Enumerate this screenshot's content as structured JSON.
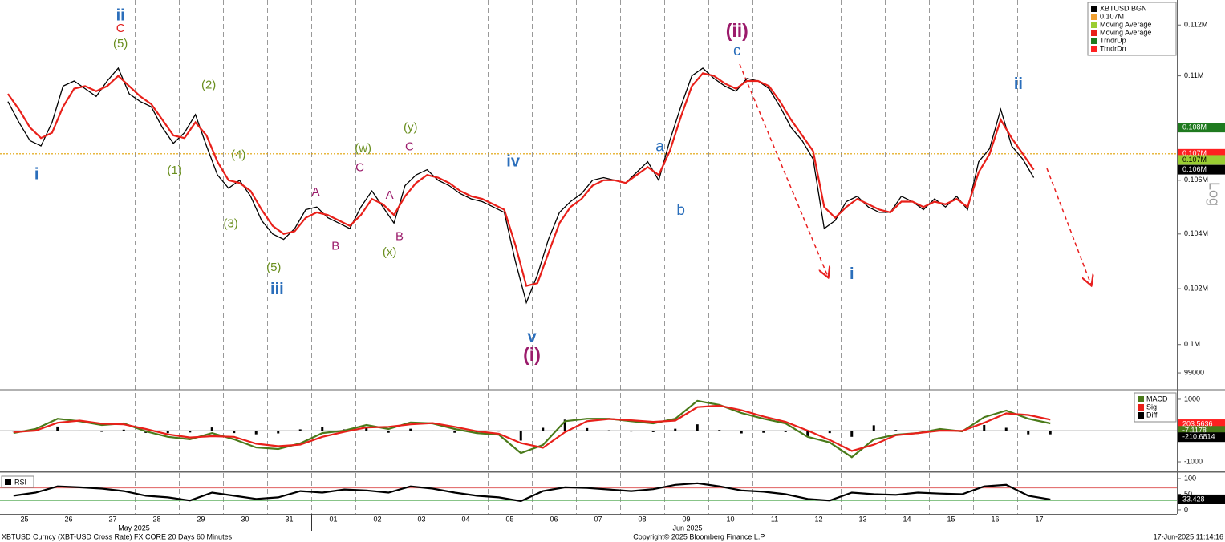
{
  "chart_data": [
    {
      "type": "line",
      "log_scale": true,
      "y_axis_label": "Log",
      "categories": [
        null,
        null,
        "25",
        null,
        null,
        null,
        "26",
        null,
        null,
        null,
        "27",
        null,
        null,
        null,
        "28",
        null,
        null,
        null,
        "29",
        null,
        null,
        null,
        "30",
        null,
        null,
        null,
        "31",
        null,
        null,
        null,
        "01",
        null,
        null,
        null,
        "02",
        null,
        null,
        null,
        "03",
        null,
        null,
        null,
        "04",
        null,
        null,
        null,
        "05",
        null,
        null,
        null,
        "06",
        null,
        null,
        null,
        "07",
        null,
        null,
        null,
        "08",
        null,
        null,
        null,
        "09",
        null,
        null,
        null,
        "10",
        null,
        null,
        null,
        "11",
        null,
        null,
        null,
        "12",
        null,
        null,
        null,
        "13",
        null,
        null,
        null,
        "14",
        null,
        null,
        null,
        "15",
        null,
        null,
        null,
        "16",
        null,
        null,
        null,
        "17",
        null
      ],
      "series": [
        {
          "color": "#000000",
          "values": [
            109000,
            108200,
            107500,
            107300,
            108200,
            109600,
            109800,
            109500,
            109200,
            109800,
            110300,
            109300,
            109000,
            108800,
            108000,
            107400,
            107800,
            108500,
            107300,
            106200,
            105700,
            106000,
            105400,
            104500,
            104000,
            103800,
            104200,
            104900,
            105000,
            104600,
            104400,
            104200,
            105000,
            105600,
            105000,
            104400,
            105800,
            106200,
            106400,
            106000,
            105800,
            105500,
            105300,
            105200,
            105000,
            104800,
            103000,
            101500,
            102500,
            103800,
            104800,
            105200,
            105500,
            106000,
            106100,
            106000,
            105900,
            106300,
            106700,
            106000,
            107500,
            108800,
            110000,
            110300,
            109900,
            109600,
            109400,
            109900,
            109800,
            109500,
            108800,
            108000,
            107500,
            106800,
            104200,
            104500,
            105200,
            105400,
            105000,
            104800,
            104800,
            105400,
            105200,
            104900,
            105300,
            105000,
            105400,
            104900,
            106700,
            107200,
            108700,
            107300,
            106800,
            106100,
            null,
            null
          ]
        },
        {
          "color": "#e8201a",
          "values": [
            109300,
            108700,
            108000,
            107600,
            107800,
            108800,
            109500,
            109600,
            109400,
            109600,
            110000,
            109600,
            109200,
            108900,
            108300,
            107700,
            107600,
            108200,
            107700,
            106700,
            106000,
            105900,
            105600,
            104900,
            104300,
            104000,
            104100,
            104600,
            104800,
            104700,
            104500,
            104300,
            104700,
            105300,
            105100,
            104700,
            105400,
            105900,
            106200,
            106100,
            105900,
            105600,
            105400,
            105300,
            105100,
            104900,
            103600,
            102100,
            102200,
            103300,
            104400,
            105000,
            105300,
            105800,
            106000,
            106000,
            105900,
            106200,
            106500,
            106200,
            107100,
            108400,
            109600,
            110100,
            110000,
            109700,
            109500,
            109800,
            109800,
            109600,
            109000,
            108300,
            107700,
            107100,
            105000,
            104600,
            105000,
            105300,
            105100,
            104900,
            104800,
            105200,
            105200,
            105000,
            105200,
            105100,
            105300,
            105000,
            106300,
            107000,
            108300,
            107600,
            107000,
            106400,
            null,
            null
          ]
        }
      ],
      "ylim": [
        98440,
        113000
      ],
      "yticks": [
        99000,
        {
          "value": 100000,
          "label": "0.1M"
        },
        {
          "value": 102000,
          "label": "0.102M"
        },
        {
          "value": 104000,
          "label": "0.104M"
        },
        {
          "value": 106000,
          "label": "0.106M"
        },
        {
          "value": 108000,
          "label": "0.108M"
        },
        {
          "value": 110000,
          "label": "0.11M"
        },
        {
          "value": 112000,
          "label": "0.112M"
        }
      ],
      "reference_line": {
        "value": 107000,
        "color": "#e0a000"
      },
      "legend": [
        {
          "label": "XBTUSD BGN",
          "color": "#000000"
        },
        {
          "label": "0.107M",
          "color": "#f0a030"
        },
        {
          "label": "Moving Average",
          "color": "#9acd32"
        },
        {
          "label": "Moving Average",
          "color": "#e8201a"
        },
        {
          "label": "TrndrUp",
          "color": "#1f7a1f"
        },
        {
          "label": "TrndrDn",
          "color": "#ff2020"
        }
      ],
      "price_tags": [
        {
          "label": "0.108M",
          "value": 108000,
          "color": "#1f7a1f"
        },
        {
          "label": "0.107M",
          "value": 107000,
          "color": "#ff2020"
        },
        {
          "label": "0.107M",
          "value": 106770,
          "color": "#9acd32"
        },
        {
          "label": "0.106M",
          "value": 106400,
          "color": "#000000"
        }
      ],
      "annotations": [
        {
          "text": "i",
          "color": "#2a6ebb",
          "x": 2.6,
          "y": 106200
        },
        {
          "text": "ii",
          "color": "#2a6ebb",
          "x": 10.2,
          "y": 112350
        },
        {
          "text": "C",
          "color": "#e02020",
          "x": 10.2,
          "y": 111840
        },
        {
          "text": "(5)",
          "color": "#6a8f1f",
          "x": 10.2,
          "y": 111250
        },
        {
          "text": "(2)",
          "color": "#6a8f1f",
          "x": 18.2,
          "y": 109630
        },
        {
          "text": "(1)",
          "color": "#6a8f1f",
          "x": 15.1,
          "y": 106350
        },
        {
          "text": "(4)",
          "color": "#6a8f1f",
          "x": 20.9,
          "y": 106950
        },
        {
          "text": "(3)",
          "color": "#6a8f1f",
          "x": 20.2,
          "y": 104360
        },
        {
          "text": "(5)",
          "color": "#6a8f1f",
          "x": 24.1,
          "y": 102760
        },
        {
          "text": "iii",
          "color": "#2a6ebb",
          "x": 24.4,
          "y": 101950
        },
        {
          "text": "A",
          "color": "#9b1b6b",
          "x": 27.9,
          "y": 105540
        },
        {
          "text": "B",
          "color": "#9b1b6b",
          "x": 29.7,
          "y": 103540
        },
        {
          "text": "(w)",
          "color": "#6a8f1f",
          "x": 32.2,
          "y": 107190
        },
        {
          "text": "C",
          "color": "#9b1b6b",
          "x": 31.9,
          "y": 106470
        },
        {
          "text": "A",
          "color": "#9b1b6b",
          "x": 34.6,
          "y": 105420
        },
        {
          "text": "B",
          "color": "#9b1b6b",
          "x": 35.5,
          "y": 103890
        },
        {
          "text": "(x)",
          "color": "#6a8f1f",
          "x": 34.6,
          "y": 103310
        },
        {
          "text": "(y)",
          "color": "#6a8f1f",
          "x": 36.5,
          "y": 107980
        },
        {
          "text": "C",
          "color": "#9b1b6b",
          "x": 36.4,
          "y": 107250
        },
        {
          "text": "iv",
          "color": "#2a6ebb",
          "x": 45.8,
          "y": 106680
        },
        {
          "text": "v",
          "color": "#2a6ebb",
          "x": 47.5,
          "y": 100240
        },
        {
          "text": "(i)",
          "color": "#9b1b6b",
          "x": 47.5,
          "y": 99590
        },
        {
          "text": "a",
          "color": "#2a6ebb",
          "x": 59.1,
          "y": 107250
        },
        {
          "text": "b",
          "color": "#2a6ebb",
          "x": 61.0,
          "y": 104860
        },
        {
          "text": "(ii)",
          "color": "#9b1b6b",
          "x": 66.1,
          "y": 111720
        },
        {
          "text": "c",
          "color": "#2a6ebb",
          "x": 66.1,
          "y": 110960
        },
        {
          "text": "i",
          "color": "#2a6ebb",
          "x": 76.5,
          "y": 102500
        },
        {
          "text": "ii",
          "color": "#2a6ebb",
          "x": 91.6,
          "y": 109660
        }
      ],
      "month_labels": [
        "May 2025",
        "Jun 2025"
      ]
    },
    {
      "type": "macd",
      "series": [
        {
          "color": "#4a7a1a",
          "values": [
            -80,
            50,
            380,
            300,
            180,
            230,
            -25,
            -200,
            -280,
            -80,
            -280,
            -540,
            -590,
            -410,
            -80,
            0,
            180,
            50,
            260,
            230,
            50,
            -80,
            -130,
            -720,
            -460,
            300,
            380,
            380,
            300,
            230,
            380,
            950,
            820,
            560,
            380,
            230,
            -200,
            -380,
            -850,
            -280,
            -130,
            -80,
            50,
            -25,
            430,
            640,
            380,
            230
          ]
        },
        {
          "color": "#e8201a",
          "values": [
            -50,
            0,
            250,
            320,
            220,
            200,
            50,
            -120,
            -220,
            -180,
            -200,
            -420,
            -500,
            -450,
            -200,
            -40,
            100,
            120,
            200,
            240,
            120,
            -20,
            -100,
            -400,
            -550,
            -50,
            300,
            370,
            330,
            280,
            320,
            750,
            800,
            650,
            450,
            280,
            0,
            -300,
            -650,
            -450,
            -150,
            -80,
            0,
            -10,
            250,
            550,
            500,
            350
          ]
        },
        {
          "color": "#000000",
          "values": [
            -30,
            50,
            130,
            -20,
            -40,
            30,
            -75,
            -80,
            -60,
            100,
            -80,
            -120,
            -90,
            40,
            120,
            40,
            80,
            -70,
            60,
            -10,
            -70,
            -60,
            -30,
            -320,
            90,
            350,
            80,
            10,
            -30,
            -50,
            60,
            200,
            20,
            -90,
            -70,
            -50,
            -200,
            -80,
            -200,
            170,
            20,
            0,
            50,
            -15,
            180,
            90,
            -120,
            -120
          ]
        }
      ],
      "ylim": [
        -1230,
        1255
      ],
      "yticks": [
        -1000,
        1000
      ],
      "legend": [
        {
          "label": "MACD",
          "color": "#4a7a1a"
        },
        {
          "label": "Sig",
          "color": "#e8201a"
        },
        {
          "label": "Diff",
          "color": "#000000"
        }
      ],
      "price_tags": [
        {
          "label": "203.5636",
          "value": 203.5636,
          "color": "#ff2020"
        },
        {
          "label": "-7.1178",
          "value": -7.1178,
          "color": "#4a7a1a"
        },
        {
          "label": "-210.6814",
          "value": -210.6814,
          "color": "#000000"
        }
      ]
    },
    {
      "type": "rsi",
      "title": "RSI",
      "values": [
        45,
        55,
        75,
        72,
        68,
        60,
        45,
        40,
        30,
        55,
        45,
        35,
        40,
        60,
        55,
        65,
        62,
        55,
        75,
        68,
        55,
        45,
        40,
        28,
        60,
        72,
        70,
        65,
        60,
        66,
        80,
        85,
        75,
        62,
        58,
        50,
        35,
        30,
        55,
        50,
        48,
        55,
        52,
        50,
        75,
        80,
        45,
        33.428
      ],
      "color": "#000000",
      "ylim": [
        -13,
        118
      ],
      "yticks": [
        0,
        50,
        100
      ],
      "ref_lines": [
        {
          "value": 70,
          "color": "#e06060"
        },
        {
          "value": 30,
          "color": "#60b060"
        }
      ],
      "price_tags": [
        {
          "label": "33.428",
          "value": 33.428,
          "color": "#000000"
        }
      ]
    }
  ],
  "footer": {
    "left": "XBTUSD Curncy (XBT-USD Cross Rate) FX CORE 20 Days 60 Minutes",
    "center": "Copyright© 2025 Bloomberg Finance L.P.",
    "right": "17-Jun-2025 11:14:16"
  }
}
